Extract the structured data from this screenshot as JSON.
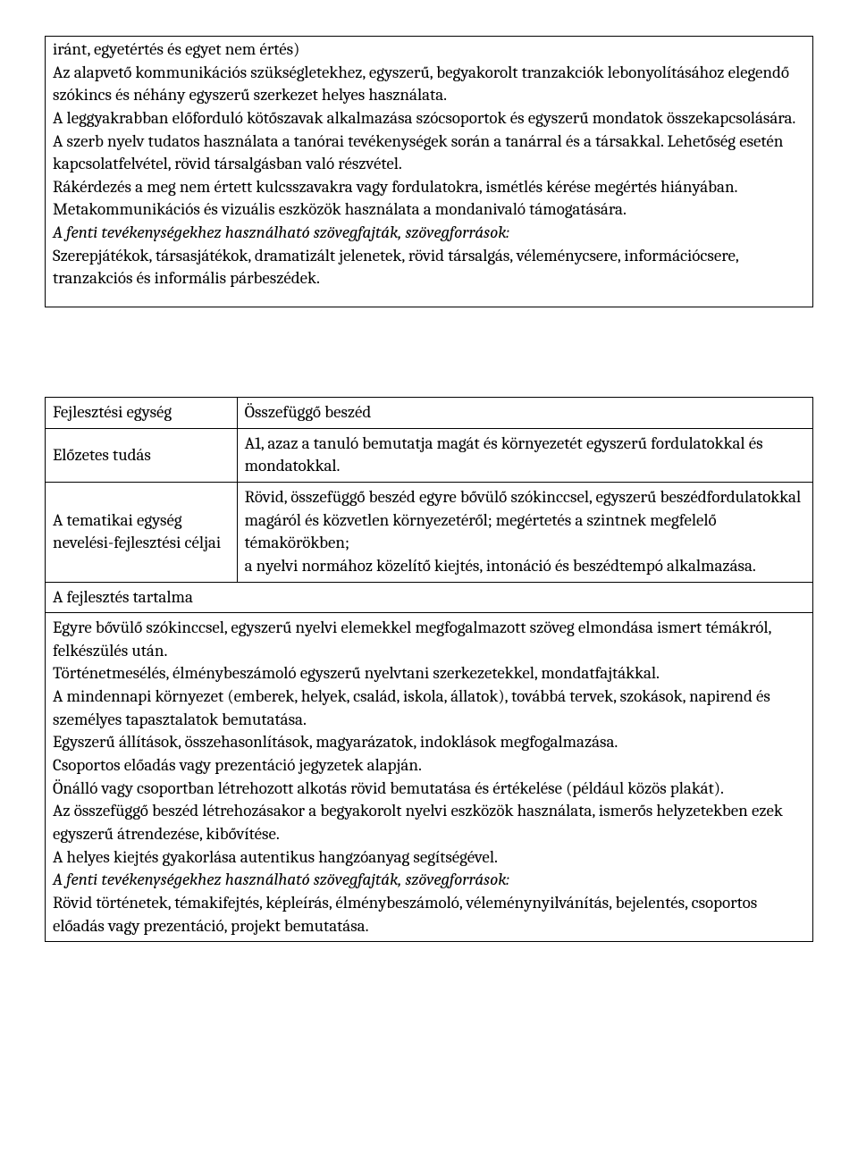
{
  "box1": {
    "p1": "iránt, egyetértés és egyet nem értés)",
    "p2": "Az alapvető kommunikációs szükségletekhez, egyszerű, begyakorolt tranzakciók lebonyolításához elegendő szókincs és néhány egyszerű szerkezet helyes használata.",
    "p3": "A leggyakrabban előforduló kötőszavak alkalmazása szócsoportok és egyszerű mondatok összekapcsolására.",
    "p4": "A  szerb nyelv tudatos használata a tanórai tevékenységek során a tanárral és a társakkal.  Lehetőség esetén kapcsolatfelvétel, rövid társalgásban való részvétel.",
    "p5": "Rákérdezés a meg nem értett kulcsszavakra vagy fordulatokra, ismétlés kérése megértés hiányában.",
    "p6": "Metakommunikációs és vizuális eszközök használata a mondanivaló támogatására.",
    "p7": "A fenti tevékenységekhez használható szövegfajták, szövegforrások:",
    "p8": "Szerepjátékok, társasjátékok, dramatizált jelenetek, rövid társalgás, véleménycsere, információcsere, tranzakciós és informális párbeszédek."
  },
  "table": {
    "r1c1": "Fejlesztési egység",
    "r1c2": "Összefüggő beszéd",
    "r2c1": "Előzetes tudás",
    "r2c2": "A1, azaz a tanuló bemutatja magát és környezetét egyszerű fordulatokkal és mondatokkal.",
    "r3c1": "A tematikai egység nevelési-fejlesztési céljai",
    "r3c2": "Rövid, összefüggő beszéd egyre bővülő szókinccsel, egyszerű beszédfordulatokkal magáról és közvetlen környezetéről; megértetés a szintnek megfelelő témakörökben;\na nyelvi normához közelítő kiejtés, intonáció és beszédtempó alkalmazása.",
    "sectionTitle": "A fejlesztés tartalma",
    "content": {
      "p1": "Egyre bővülő szókinccsel, egyszerű nyelvi elemekkel megfogalmazott szöveg elmondása ismert témákról, felkészülés után.",
      "p2": "Történetmesélés, élménybeszámoló egyszerű nyelvtani szerkezetekkel, mondatfajtákkal.",
      "p3": "A mindennapi környezet (emberek, helyek, család, iskola, állatok), továbbá tervek, szokások, napirend és személyes tapasztalatok bemutatása.",
      "p4": "Egyszerű állítások, összehasonlítások, magyarázatok, indoklások megfogalmazása.",
      "p5": "Csoportos előadás vagy prezentáció jegyzetek alapján.",
      "p6": "Önálló vagy csoportban létrehozott alkotás rövid bemutatása és értékelése (például közös plakát).",
      "p7": "Az összefüggő beszéd létrehozásakor a begyakorolt nyelvi eszközök használata, ismerős helyzetekben ezek egyszerű átrendezése, kibővítése.",
      "p8": "A helyes kiejtés gyakorlása autentikus hangzóanyag segítségével.",
      "p9": "A fenti tevékenységekhez használható szövegfajták, szövegforrások:",
      "p10": "Rövid történetek, témakifejtés, képleírás, élménybeszámoló, véleménynyilvánítás, bejelentés, csoportos előadás vagy prezentáció, projekt bemutatása."
    }
  }
}
